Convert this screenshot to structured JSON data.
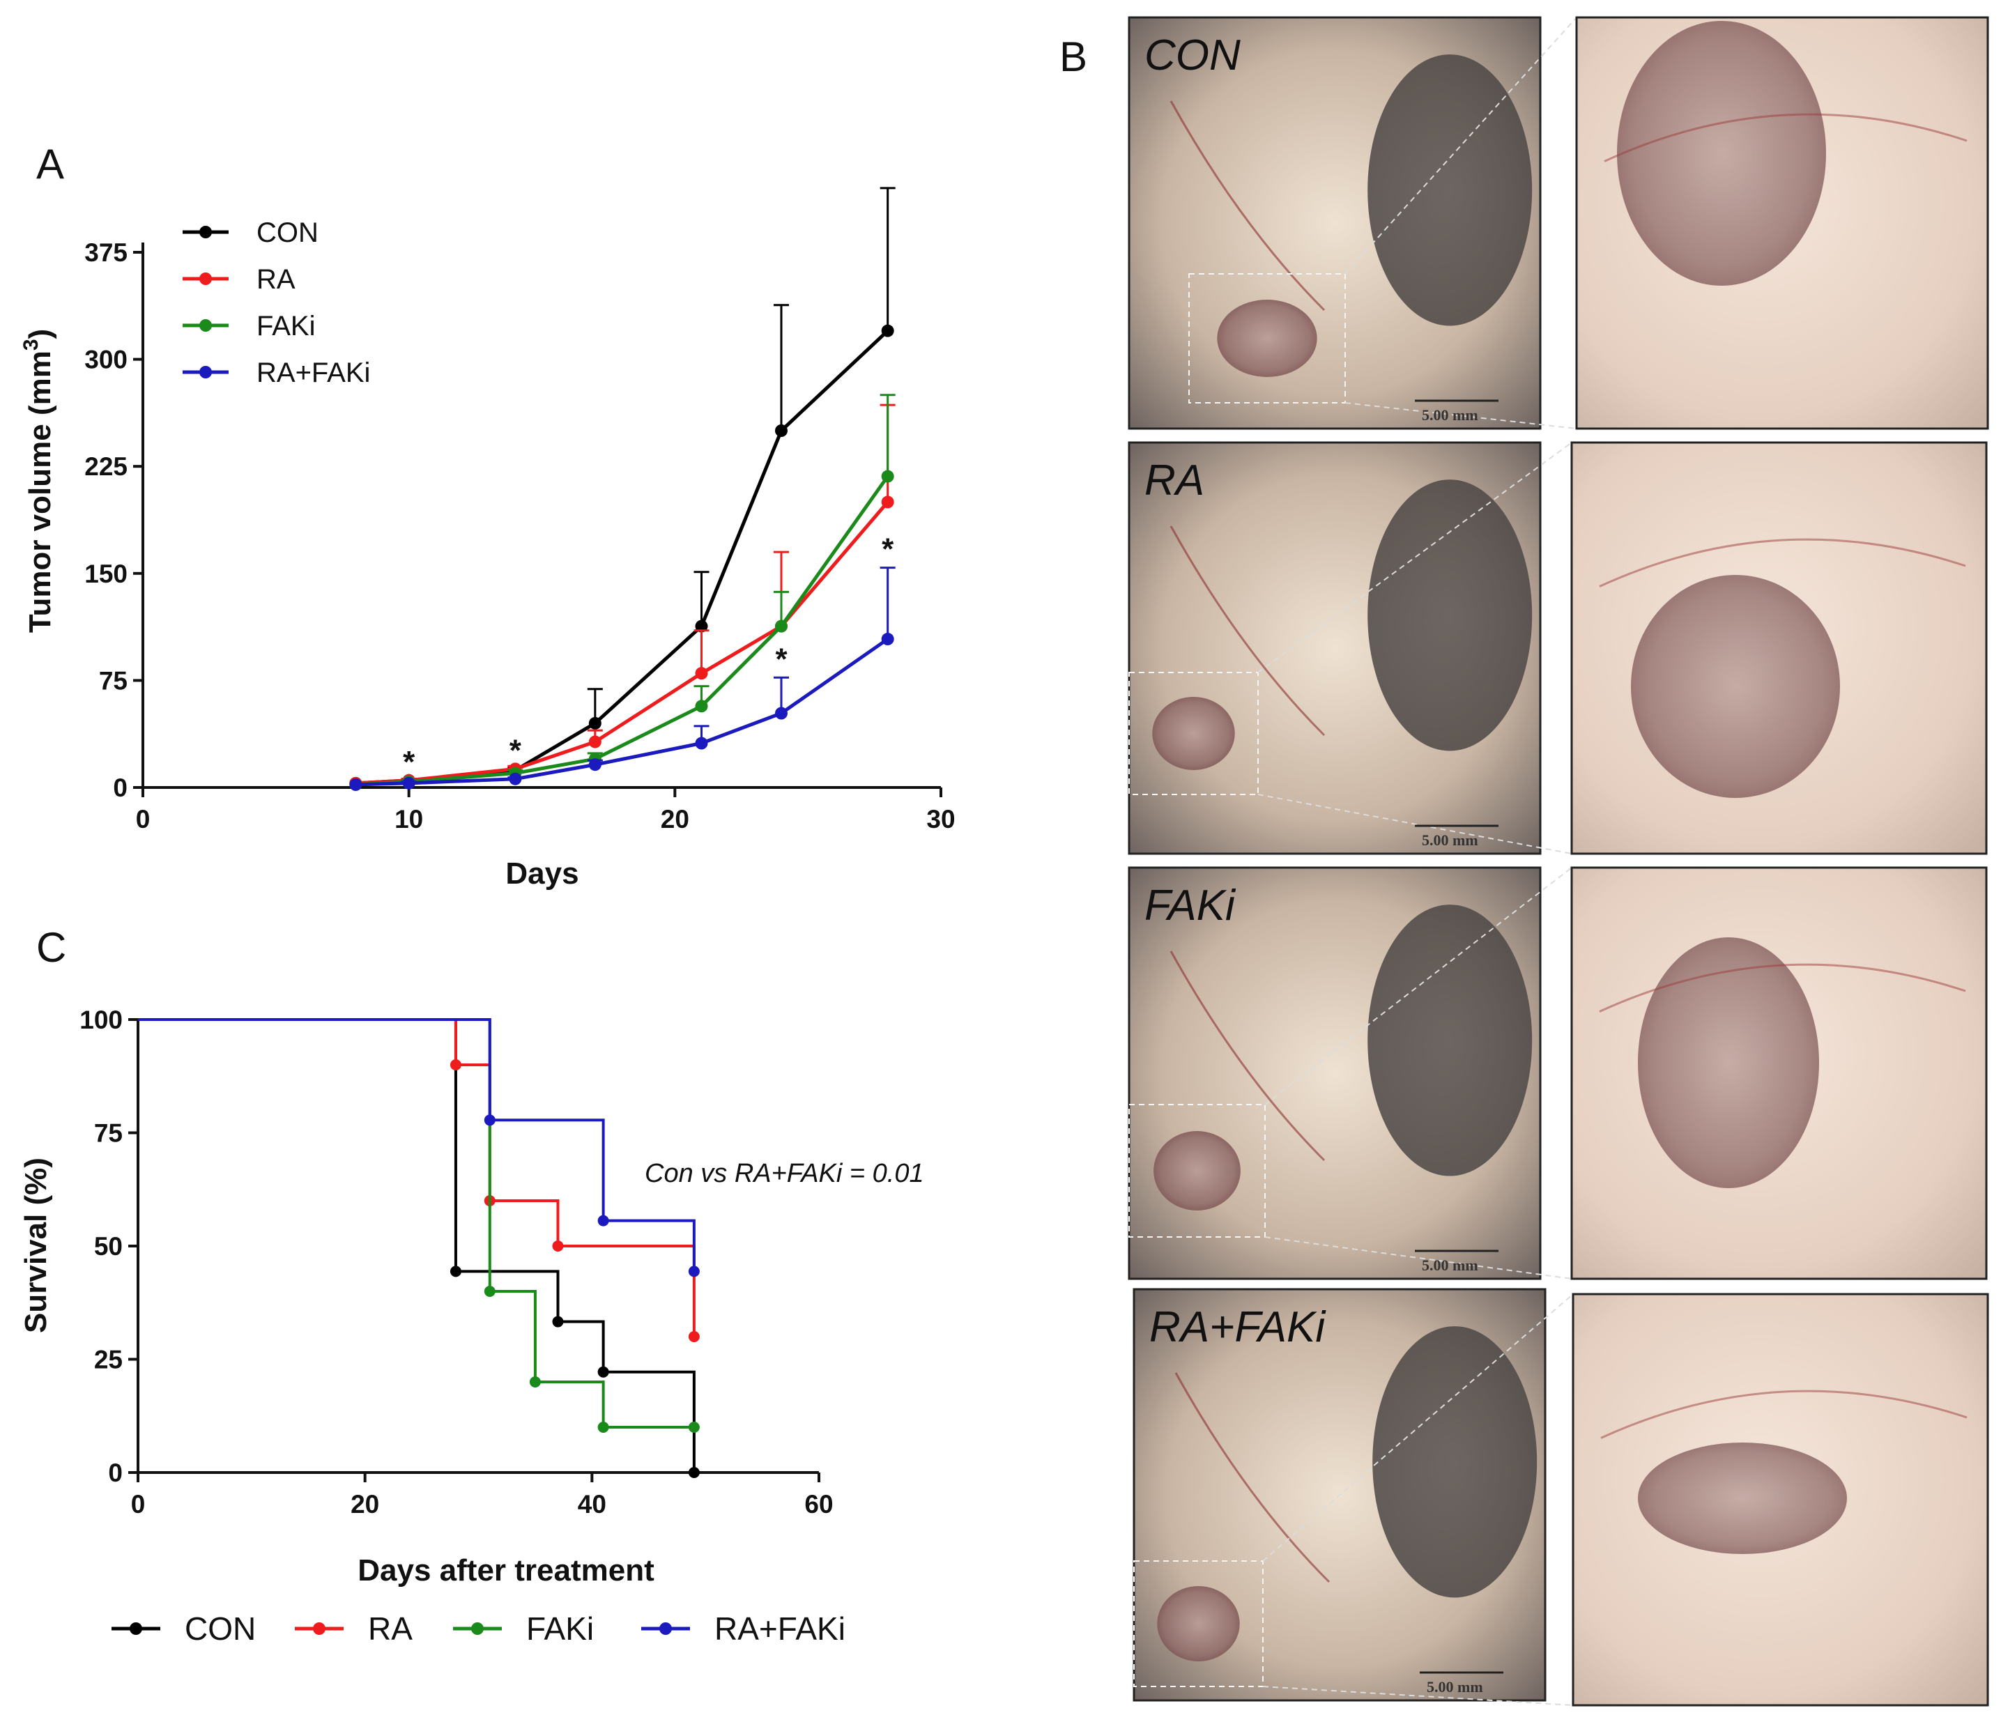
{
  "panels": {
    "a": "A",
    "b": "B",
    "c": "C"
  },
  "colors": {
    "CON": "#000000",
    "RA": "#ee1c1c",
    "FAKi": "#1a8a1a",
    "RA+FAKi": "#1a1abf"
  },
  "chart_data": [
    {
      "type": "line",
      "panel": "A",
      "title": "",
      "xlabel": "Days",
      "ylabel": "Tumor volume (mm",
      "ylabel_sup": "3",
      "ylabel_close": ")",
      "xlim": [
        0,
        30
      ],
      "ylim": [
        0,
        375
      ],
      "xticks": [
        "0",
        "10",
        "20",
        "30"
      ],
      "xtick_values": [
        0,
        10,
        20,
        30
      ],
      "yticks": [
        "0",
        "75",
        "150",
        "225",
        "300",
        "375"
      ],
      "ytick_values": [
        0,
        75,
        150,
        225,
        300,
        375
      ],
      "x": [
        8,
        10,
        14,
        17,
        21,
        24,
        28
      ],
      "series": [
        {
          "name": "CON",
          "values": [
            3,
            5,
            12,
            45,
            113,
            250,
            320
          ],
          "err": [
            0,
            1,
            2,
            24,
            38,
            88,
            100
          ]
        },
        {
          "name": "RA",
          "values": [
            3,
            5,
            13,
            32,
            80,
            113,
            200
          ],
          "err": [
            0,
            1,
            2,
            8,
            30,
            52,
            68
          ]
        },
        {
          "name": "FAKi",
          "values": [
            2,
            4,
            10,
            20,
            57,
            113,
            218
          ],
          "err": [
            0,
            1,
            2,
            4,
            14,
            24,
            57
          ]
        },
        {
          "name": "RA+FAKi",
          "values": [
            2,
            3,
            6,
            16,
            31,
            52,
            104
          ],
          "err": [
            0,
            1,
            1,
            3,
            12,
            25,
            50
          ]
        }
      ],
      "significance": [
        {
          "x": 10,
          "y": 5,
          "label": "*"
        },
        {
          "x": 14,
          "y": 13,
          "label": "*"
        },
        {
          "x": 24,
          "y": 77,
          "label": "*"
        },
        {
          "x": 28,
          "y": 154,
          "label": "*"
        }
      ],
      "legend": [
        "CON",
        "RA",
        "FAKi",
        "RA+FAKi"
      ],
      "legend_position": "top-left"
    },
    {
      "type": "line",
      "subtype": "kaplan-meier step",
      "panel": "C",
      "title": "",
      "xlabel": "Days after treatment",
      "ylabel": "Survival (%)",
      "xlim": [
        0,
        60
      ],
      "ylim": [
        0,
        100
      ],
      "xticks": [
        "0",
        "20",
        "40",
        "60"
      ],
      "xtick_values": [
        0,
        20,
        40,
        60
      ],
      "yticks": [
        "0",
        "25",
        "50",
        "75",
        "100"
      ],
      "ytick_values": [
        0,
        25,
        50,
        75,
        100
      ],
      "series": [
        {
          "name": "CON",
          "steps": [
            [
              0,
              100
            ],
            [
              28,
              44.4
            ],
            [
              37,
              33.3
            ],
            [
              41,
              22.2
            ],
            [
              49,
              0
            ]
          ],
          "markers": [
            [
              28,
              44.4
            ],
            [
              37,
              33.3
            ],
            [
              41,
              22.2
            ],
            [
              49,
              0
            ]
          ]
        },
        {
          "name": "RA",
          "steps": [
            [
              0,
              100
            ],
            [
              28,
              90
            ],
            [
              31,
              60
            ],
            [
              37,
              50
            ],
            [
              49,
              30
            ]
          ],
          "markers": [
            [
              28,
              90
            ],
            [
              31,
              60
            ],
            [
              37,
              50
            ],
            [
              49,
              30
            ]
          ]
        },
        {
          "name": "FAKi",
          "steps": [
            [
              0,
              100
            ],
            [
              31,
              40
            ],
            [
              35,
              20
            ],
            [
              41,
              10
            ],
            [
              49,
              10
            ]
          ],
          "markers": [
            [
              31,
              40
            ],
            [
              35,
              20
            ],
            [
              41,
              10
            ],
            [
              49,
              10
            ]
          ]
        },
        {
          "name": "RA+FAKi",
          "steps": [
            [
              0,
              100
            ],
            [
              31,
              77.8
            ],
            [
              41,
              55.6
            ],
            [
              49,
              44.4
            ]
          ],
          "markers": [
            [
              31,
              77.8
            ],
            [
              41,
              55.6
            ],
            [
              49,
              44.4
            ]
          ]
        }
      ],
      "annotation": "Con vs RA+FAKi = 0.01",
      "legend": [
        "CON",
        "RA",
        "FAKi",
        "RA+FAKi"
      ],
      "legend_position": "bottom"
    }
  ],
  "photos": {
    "rows": [
      {
        "label": "CON",
        "scale": "5.00 mm"
      },
      {
        "label": "RA",
        "scale": "5.00 mm"
      },
      {
        "label": "FAKi",
        "scale": "5.00 mm"
      },
      {
        "label": "RA+FAKi",
        "scale": "5.00 mm"
      }
    ]
  }
}
